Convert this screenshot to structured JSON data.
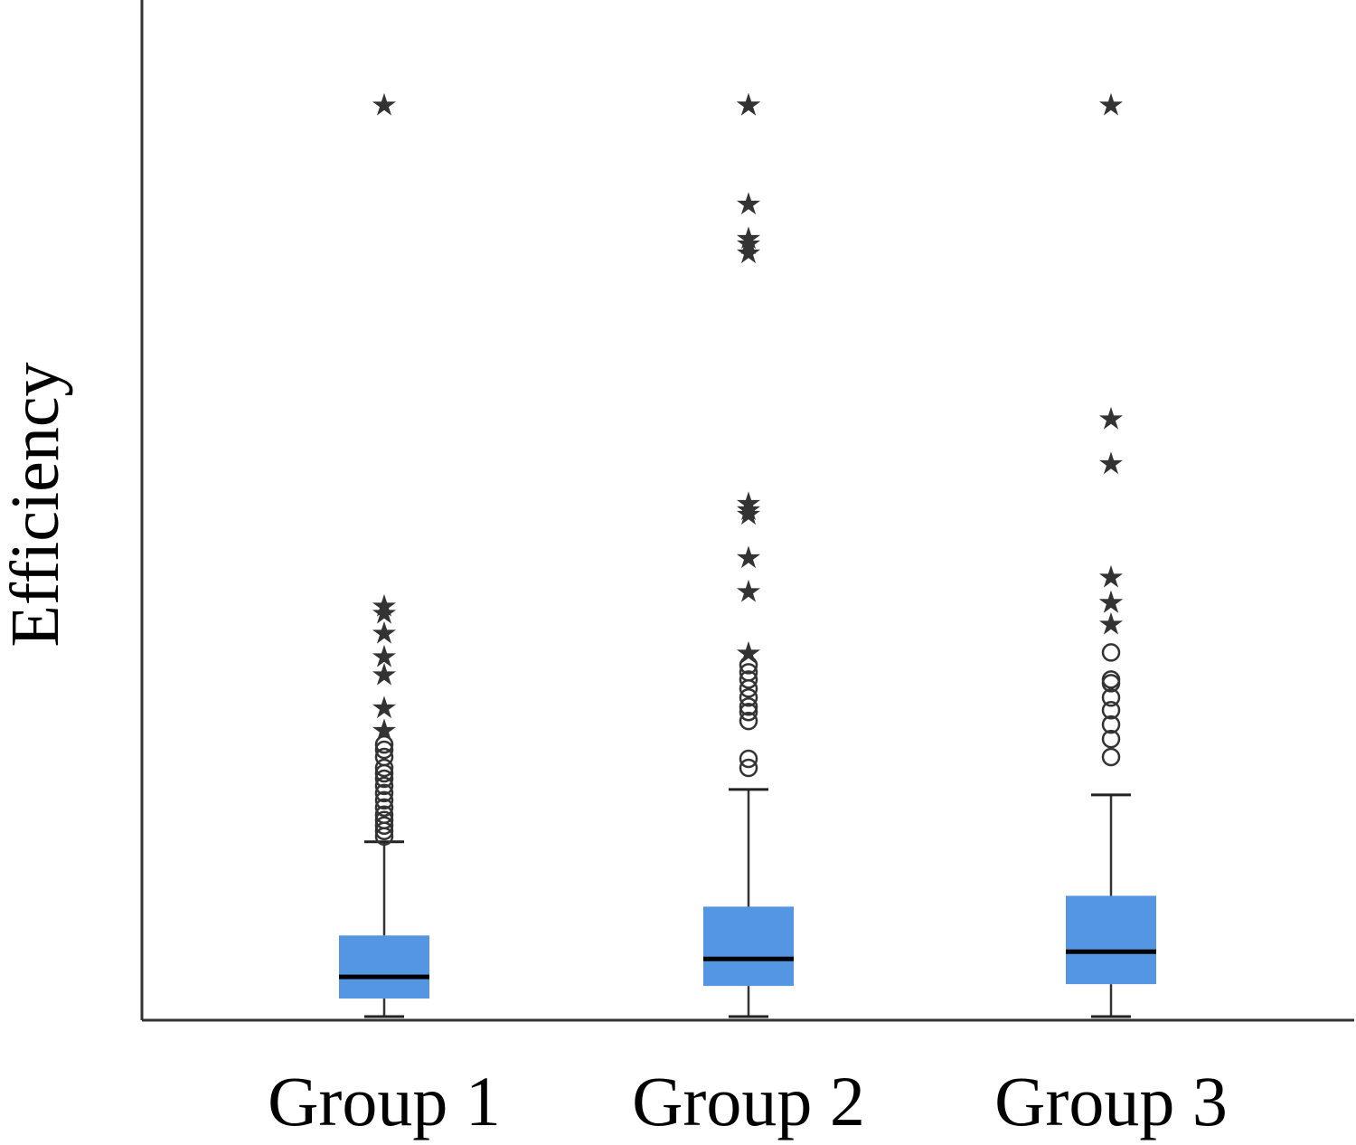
{
  "chart_data": {
    "type": "box",
    "title": "",
    "xlabel": "",
    "ylabel": "Efficiency",
    "y_ticks_shown": false,
    "grid": false,
    "legend": "none",
    "ylim": [
      0,
      1130
    ],
    "box_color": "#5596e3",
    "median_color": "#000000",
    "outlier_color": "#333333",
    "categories": [
      "Group 1",
      "Group 2",
      "Group 3"
    ],
    "series": [
      {
        "name": "",
        "whisker_low": 2,
        "q1": 22,
        "median": 46,
        "q3": 92,
        "whisker_high": 196,
        "mild_outliers": [
          202,
          208,
          214,
          220,
          226,
          234,
          242,
          250,
          258,
          266,
          272,
          278,
          290,
          298,
          304
        ],
        "extreme_outliers": [
          320,
          345,
          382,
          402,
          428,
          450,
          458,
          1014
        ]
      },
      {
        "name": "",
        "whisker_low": 2,
        "q1": 36,
        "median": 66,
        "q3": 124,
        "whisker_high": 254,
        "mild_outliers": [
          278,
          288,
          330,
          340,
          346,
          356,
          366,
          376,
          384,
          392
        ],
        "extreme_outliers": [
          406,
          474,
          512,
          560,
          565,
          572,
          850,
          860,
          866,
          904,
          1014,
          1014
        ]
      },
      {
        "name": "",
        "whisker_low": 2,
        "q1": 38,
        "median": 74,
        "q3": 136,
        "whisker_high": 248,
        "mild_outliers": [
          290,
          310,
          326,
          342,
          356,
          372,
          376,
          406
        ],
        "extreme_outliers": [
          438,
          462,
          462,
          490,
          616,
          666,
          1014
        ]
      }
    ]
  }
}
